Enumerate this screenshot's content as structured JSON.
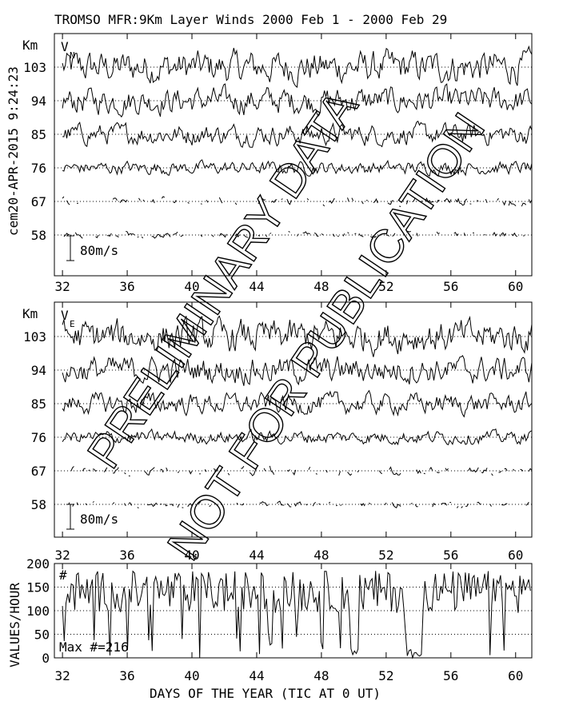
{
  "title": "TROMSO MFR:9Km Layer Winds 2000 Feb  1 - 2000 Feb 29",
  "side_stamp": "cem20-APR-2015  9:24:23",
  "x_label": "DAYS OF THE YEAR (TIC AT 0 UT)",
  "watermark": {
    "line1": "PRELIMINARY DATA",
    "line2": "NOT FOR PUBLICATION"
  },
  "chart_data": [
    {
      "type": "line",
      "panel": "VN",
      "name_label": "V",
      "name_sub": "N",
      "ylabel": "Km",
      "x_ticks": [
        32,
        36,
        40,
        44,
        48,
        52,
        56,
        60
      ],
      "xlim": [
        31.5,
        61
      ],
      "y_levels_km": [
        103,
        94,
        85,
        76,
        67,
        58
      ],
      "scale_bar_label": "80m/s",
      "scale_bar_ms": 80,
      "series": [
        {
          "km": 103,
          "amplitude_ms": 55
        },
        {
          "km": 94,
          "amplitude_ms": 45
        },
        {
          "km": 85,
          "amplitude_ms": 35
        },
        {
          "km": 76,
          "amplitude_ms": 22
        },
        {
          "km": 67,
          "amplitude_ms": 14
        },
        {
          "km": 58,
          "amplitude_ms": 10
        }
      ]
    },
    {
      "type": "line",
      "panel": "VE",
      "name_label": "V",
      "name_sub": "E",
      "ylabel": "Km",
      "x_ticks": [
        32,
        36,
        40,
        44,
        48,
        52,
        56,
        60
      ],
      "xlim": [
        31.5,
        61
      ],
      "y_levels_km": [
        103,
        94,
        85,
        76,
        67,
        58
      ],
      "scale_bar_label": "80m/s",
      "scale_bar_ms": 80,
      "series": [
        {
          "km": 103,
          "amplitude_ms": 55
        },
        {
          "km": 94,
          "amplitude_ms": 45
        },
        {
          "km": 85,
          "amplitude_ms": 35
        },
        {
          "km": 76,
          "amplitude_ms": 22
        },
        {
          "km": 67,
          "amplitude_ms": 14
        },
        {
          "km": 58,
          "amplitude_ms": 10
        }
      ]
    },
    {
      "type": "line",
      "panel": "count",
      "ylabel": "VALUES/HOUR",
      "series_label": "#",
      "max_label": "Max #=216",
      "y_ticks": [
        0,
        50,
        100,
        150,
        200
      ],
      "ylim": [
        0,
        200
      ],
      "x_ticks": [
        32,
        36,
        40,
        44,
        48,
        52,
        56,
        60
      ],
      "xlim": [
        31.5,
        61
      ],
      "typical_value": 140,
      "gaps_days": [
        [
          49.8,
          50.3
        ],
        [
          53.3,
          54.2
        ]
      ]
    }
  ]
}
